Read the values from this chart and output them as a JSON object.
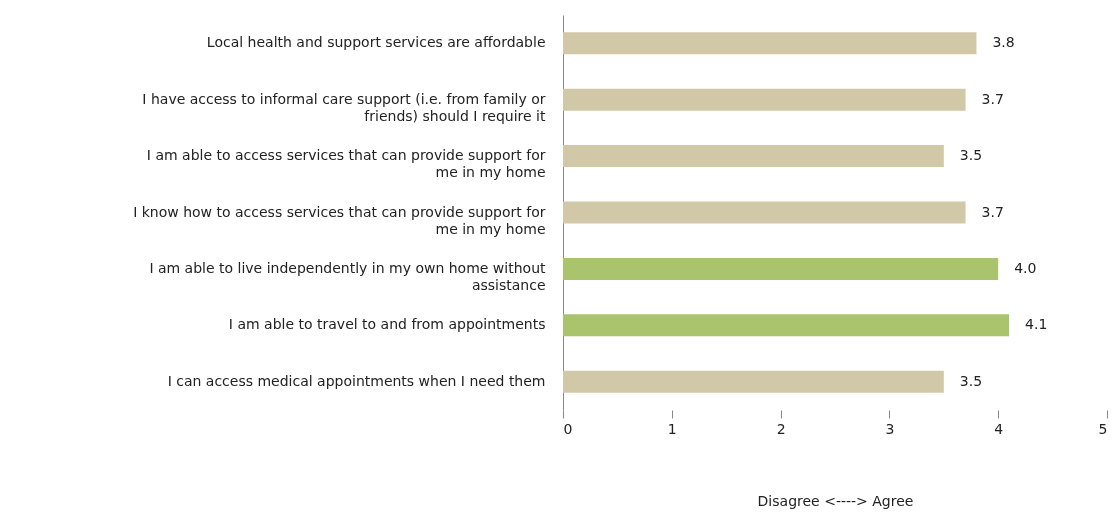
{
  "chart_data": {
    "type": "bar",
    "orientation": "horizontal",
    "xlabel": "Disagree  <---->  Agree",
    "categories": [
      "Local health and support services are affordable",
      "I have access to informal care support (i.e. from family or friends) should I require it",
      "I am able to access services that can provide support for me in my home",
      "I know how to access services that can provide support for me in my home",
      "I am able to live independently in my own home without assistance",
      "I am able to travel to and from appointments",
      "I can access medical appointments when I need them"
    ],
    "values": [
      3.8,
      3.7,
      3.5,
      3.7,
      4.0,
      4.1,
      3.5
    ],
    "value_labels": [
      "3.8",
      "3.7",
      "3.5",
      "3.7",
      "4.0",
      "4.1",
      "3.5"
    ],
    "colors": [
      "#d1c8a7",
      "#d1c8a7",
      "#d1c8a7",
      "#d1c8a7",
      "#a9c46c",
      "#a9c46c",
      "#d1c8a7"
    ],
    "xlim": [
      0,
      5
    ],
    "xticks": [
      0,
      1,
      2,
      3,
      4,
      5
    ],
    "grid": false
  }
}
